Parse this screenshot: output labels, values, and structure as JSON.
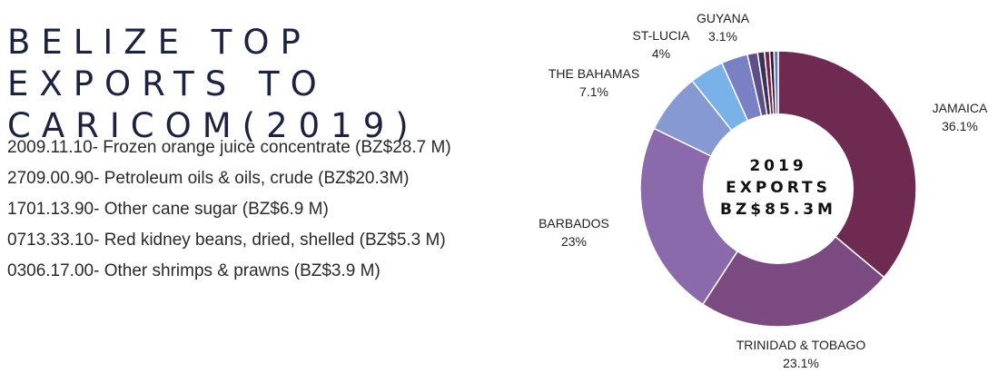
{
  "title": "BELIZE TOP EXPORTS TO CARICOM(2019)",
  "exports": [
    "2009.11.10- Frozen orange juice concentrate (BZ$28.7 M)",
    "2709.00.90- Petroleum oils & oils, crude (BZ$20.3M)",
    "1701.13.90- Other cane sugar (BZ$6.9 M)",
    "0713.33.10- Red kidney beans, dried, shelled (BZ$5.3 M)",
    "0306.17.00- Other shrimps & prawns (BZ$3.9 M)"
  ],
  "chart_data": {
    "type": "pie",
    "center_text": [
      "2019",
      "EXPORTS",
      "BZ$85.3M"
    ],
    "slices": [
      {
        "label": "JAMAICA",
        "percent_text": "36.1%",
        "value": 36.1,
        "color": "#6e2a51"
      },
      {
        "label": "TRINIDAD & TOBAGO",
        "percent_text": "23.1%",
        "value": 23.1,
        "color": "#7b4a80"
      },
      {
        "label": "BARBADOS",
        "percent_text": "23%",
        "value": 23.0,
        "color": "#8a6aaa"
      },
      {
        "label": "THE BAHAMAS",
        "percent_text": "7.1%",
        "value": 7.1,
        "color": "#8799d3"
      },
      {
        "label": "ST-LUCIA",
        "percent_text": "4%",
        "value": 4.0,
        "color": "#79b2e8"
      },
      {
        "label": "GUYANA",
        "percent_text": "3.1%",
        "value": 3.1,
        "color": "#7a80c4"
      },
      {
        "label": "",
        "percent_text": "",
        "value": 1.2,
        "color": "#5e4f8a"
      },
      {
        "label": "",
        "percent_text": "",
        "value": 0.8,
        "color": "#3d2f5a"
      },
      {
        "label": "",
        "percent_text": "",
        "value": 0.6,
        "color": "#7a1f45"
      },
      {
        "label": "",
        "percent_text": "",
        "value": 0.5,
        "color": "#2b1a35"
      },
      {
        "label": "",
        "percent_text": "",
        "value": 0.5,
        "color": "#5a7bc0"
      }
    ]
  }
}
